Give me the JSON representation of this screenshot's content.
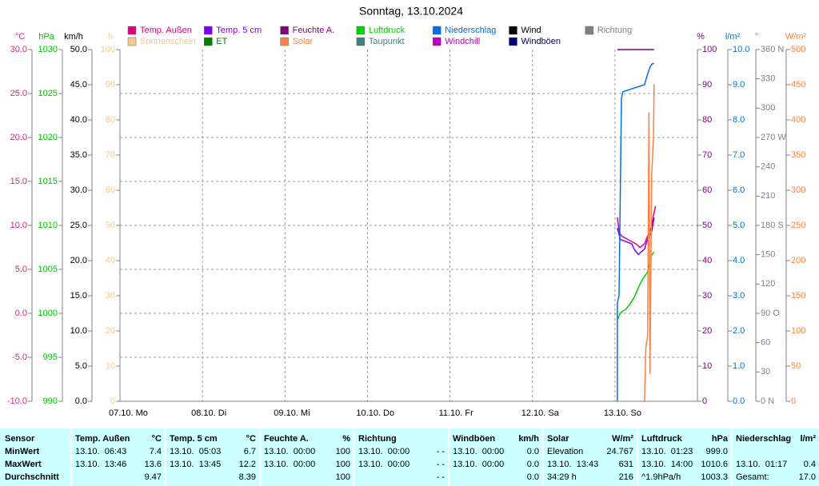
{
  "chart_data": {
    "type": "line",
    "title": "Sonntag, 13.10.2024",
    "xlim": [
      0,
      168
    ],
    "xticks": [
      {
        "value": 0,
        "label": "07.10.  Mo"
      },
      {
        "value": 24,
        "label": "08.10.  Di"
      },
      {
        "value": 48,
        "label": "09.10.  Mi"
      },
      {
        "value": 72,
        "label": "10.10.  Do"
      },
      {
        "value": 96,
        "label": "11.10.  Fr"
      },
      {
        "value": 120,
        "label": "12.10.  Sa"
      },
      {
        "value": 144,
        "label": "13.10.  So"
      }
    ],
    "grid": true,
    "axes": {
      "temp": {
        "unit": "°C",
        "color": "#e0207f",
        "side": "left",
        "lim": [
          -10,
          30
        ],
        "ticks": [
          {
            "value": -10,
            "label": "-10.0"
          },
          {
            "value": -5,
            "label": "-5.0"
          },
          {
            "value": 0,
            "label": "0.0"
          },
          {
            "value": 5,
            "label": "5.0"
          },
          {
            "value": 10,
            "label": "10.0"
          },
          {
            "value": 15,
            "label": "15.0"
          },
          {
            "value": 20,
            "label": "20.0"
          },
          {
            "value": 25,
            "label": "25.0"
          },
          {
            "value": 30,
            "label": "30.0"
          }
        ]
      },
      "pressure": {
        "unit": "hPa",
        "color": "#00c000",
        "side": "left",
        "lim": [
          990,
          1030
        ],
        "ticks": [
          990,
          995,
          1000,
          1005,
          1010,
          1015,
          1020,
          1025,
          1030
        ]
      },
      "speed": {
        "unit": "km/h",
        "color": "#000000",
        "side": "left",
        "lim": [
          0,
          50
        ],
        "ticks": [
          {
            "value": 0,
            "label": "0.0"
          },
          {
            "value": 5,
            "label": "5.0"
          },
          {
            "value": 10,
            "label": "10.0"
          },
          {
            "value": 15,
            "label": "15.0"
          },
          {
            "value": 20,
            "label": "20.0"
          },
          {
            "value": 25,
            "label": "25.0"
          },
          {
            "value": 30,
            "label": "30.0"
          },
          {
            "value": 35,
            "label": "35.0"
          },
          {
            "value": 40,
            "label": "40.0"
          },
          {
            "value": 45,
            "label": "45.0"
          },
          {
            "value": 50,
            "label": "50.0"
          }
        ]
      },
      "hours": {
        "unit": "h",
        "color": "#f4c890",
        "side": "left",
        "lim": [
          0,
          100
        ],
        "ticks": [
          0,
          10,
          20,
          30,
          40,
          50,
          60,
          70,
          80,
          90,
          100
        ]
      },
      "percent": {
        "unit": "%",
        "color": "#800080",
        "side": "right",
        "lim": [
          0,
          100
        ],
        "ticks": [
          0,
          10,
          20,
          30,
          40,
          50,
          60,
          70,
          80,
          90,
          100
        ]
      },
      "rain": {
        "unit": "l/m²",
        "color": "#0070d0",
        "side": "right",
        "lim": [
          0,
          10
        ],
        "ticks": [
          {
            "value": 0,
            "label": "0.0"
          },
          {
            "value": 1,
            "label": "1.0"
          },
          {
            "value": 2,
            "label": "2.0"
          },
          {
            "value": 3,
            "label": "3.0"
          },
          {
            "value": 4,
            "label": "4.0"
          },
          {
            "value": 5,
            "label": "5.0"
          },
          {
            "value": 6,
            "label": "6.0"
          },
          {
            "value": 7,
            "label": "7.0"
          },
          {
            "value": 8,
            "label": "8.0"
          },
          {
            "value": 9,
            "label": "9.0"
          },
          {
            "value": 10,
            "label": "10.0"
          }
        ]
      },
      "direction": {
        "unit": "°",
        "color": "#808080",
        "side": "right",
        "lim": [
          0,
          360
        ],
        "ticks": [
          {
            "value": 0,
            "label": "0  N"
          },
          30,
          60,
          {
            "value": 90,
            "label": "90  O"
          },
          120,
          150,
          {
            "value": 180,
            "label": "180  S"
          },
          210,
          240,
          {
            "value": 270,
            "label": "270  W"
          },
          300,
          330,
          {
            "value": 360,
            "label": "360  N"
          }
        ]
      },
      "radiation": {
        "unit": "W/m²",
        "color": "#ff8040",
        "side": "right",
        "lim": [
          0,
          500
        ],
        "ticks": [
          0,
          50,
          100,
          150,
          200,
          250,
          300,
          350,
          400,
          450,
          500
        ]
      }
    },
    "series": [
      {
        "name": "Temp. Außen",
        "color": "#e0007f",
        "axis": "temp",
        "x": [
          144.7,
          145.2,
          145.9,
          147.8,
          150.1,
          151.3,
          152.6,
          153.5,
          154.5,
          155.4,
          155.8
        ],
        "values": [
          10.9,
          9.3,
          8.8,
          8.4,
          7.9,
          7.5,
          7.9,
          8.8,
          9.7,
          11.5,
          12.2
        ]
      },
      {
        "name": "Temp. 5 cm",
        "color": "#8000ff",
        "axis": "temp",
        "x": [
          144.7,
          145.6,
          148.9,
          149.6,
          150.8,
          152.6,
          153.5,
          154.7,
          155.4
        ],
        "values": [
          9.7,
          8.4,
          7.9,
          7.3,
          6.7,
          7.3,
          8.4,
          9.3,
          10.9
        ]
      },
      {
        "name": "Feuchte A.",
        "color": "#800080",
        "axis": "percent",
        "x": [
          144.7,
          155.4
        ],
        "values": [
          100,
          100
        ]
      },
      {
        "name": "Luftdruck",
        "color": "#00d000",
        "axis": "pressure",
        "x": [
          144.7,
          145.6,
          146.1,
          147.3,
          148.4,
          149.6,
          150.8,
          151.9,
          152.6,
          153.5,
          154.0,
          154.5,
          155.4
        ],
        "values": [
          999.3,
          1000,
          1000.2,
          1000.5,
          1001.1,
          1001.8,
          1002.9,
          1003.8,
          1004.2,
          1004.7,
          1005.6,
          1006.5,
          1007
        ]
      },
      {
        "name": "Niederschlag",
        "color": "#0070e0",
        "axis": "rain",
        "x": [
          144.7,
          144.7,
          145.2,
          145.9,
          146.3,
          152.6,
          153.5,
          154.2,
          154.9,
          155.4
        ],
        "values": [
          0,
          2.8,
          3.0,
          8.6,
          8.8,
          9.0,
          9.3,
          9.5,
          9.6,
          9.6
        ]
      },
      {
        "name": "Wind",
        "color": "#000000"
      },
      {
        "name": "Richtung",
        "color": "#808080"
      },
      {
        "name": "Sonnenschein",
        "color": "#f4c890"
      },
      {
        "name": "ET",
        "color": "#008000"
      },
      {
        "name": "Solar",
        "color": "#ff8040",
        "axis": "radiation",
        "x": [
          152.1,
          152.6,
          153.0,
          153.5,
          153.9,
          154.2,
          154.7,
          155.2,
          155.4
        ],
        "values": [
          0,
          0,
          76,
          93,
          411,
          39,
          320,
          377,
          451
        ]
      },
      {
        "name": "Taupunkt",
        "color": "#408080"
      },
      {
        "name": "Windchill",
        "color": "#c000c0"
      },
      {
        "name": "Windböen",
        "color": "#000080"
      }
    ]
  },
  "table": {
    "columns": [
      {
        "name": "Sensor"
      },
      {
        "name": "Temp. Außen",
        "unit": "°C"
      },
      {
        "name": "Temp. 5 cm",
        "unit": "°C"
      },
      {
        "name": "Feuchte A.",
        "unit": "%"
      },
      {
        "name": "Richtung"
      },
      {
        "name": "Windböen",
        "unit": "km/h"
      },
      {
        "name": "Solar",
        "unit": "W/m²"
      },
      {
        "name": "Luftdruck",
        "unit": "hPa"
      },
      {
        "name": "Niederschlag",
        "unit": "l/m²"
      }
    ],
    "rows": [
      {
        "label": "MinWert",
        "cells": [
          [
            "13.10.  06:43",
            "7.4"
          ],
          [
            "13.10.  05:03",
            "6.7"
          ],
          [
            "13.10.  00:00",
            "100"
          ],
          [
            "13.10.  00:00",
            "- -"
          ],
          [
            "13.10.  00:00",
            "0.0"
          ],
          [
            "Elevation",
            "24.767"
          ],
          [
            "13.10.  01:23",
            "999.0"
          ],
          []
        ]
      },
      {
        "label": "MaxWert",
        "cells": [
          [
            "13.10.  13:46",
            "13.6"
          ],
          [
            "13.10.  13:45",
            "12.2"
          ],
          [
            "13.10.  00:00",
            "100"
          ],
          [
            "13.10.  00:00",
            "- -"
          ],
          [
            "13.10.  00:00",
            "0.0"
          ],
          [
            "13.10.  13:43",
            "631"
          ],
          [
            "13.10.  14:00",
            "1010.6"
          ],
          [
            "13.10.  01:17",
            "0.4"
          ]
        ]
      },
      {
        "label": "Durchschnitt",
        "cells": [
          [
            "9.47"
          ],
          [
            "8.39"
          ],
          [
            "100"
          ],
          [
            "- -"
          ],
          [
            "0.0"
          ],
          [
            "34:29 h",
            "216"
          ],
          [
            "^1.9hPa/h",
            "1003.3"
          ],
          [
            "Gesamt:",
            "17.0"
          ]
        ]
      }
    ]
  }
}
